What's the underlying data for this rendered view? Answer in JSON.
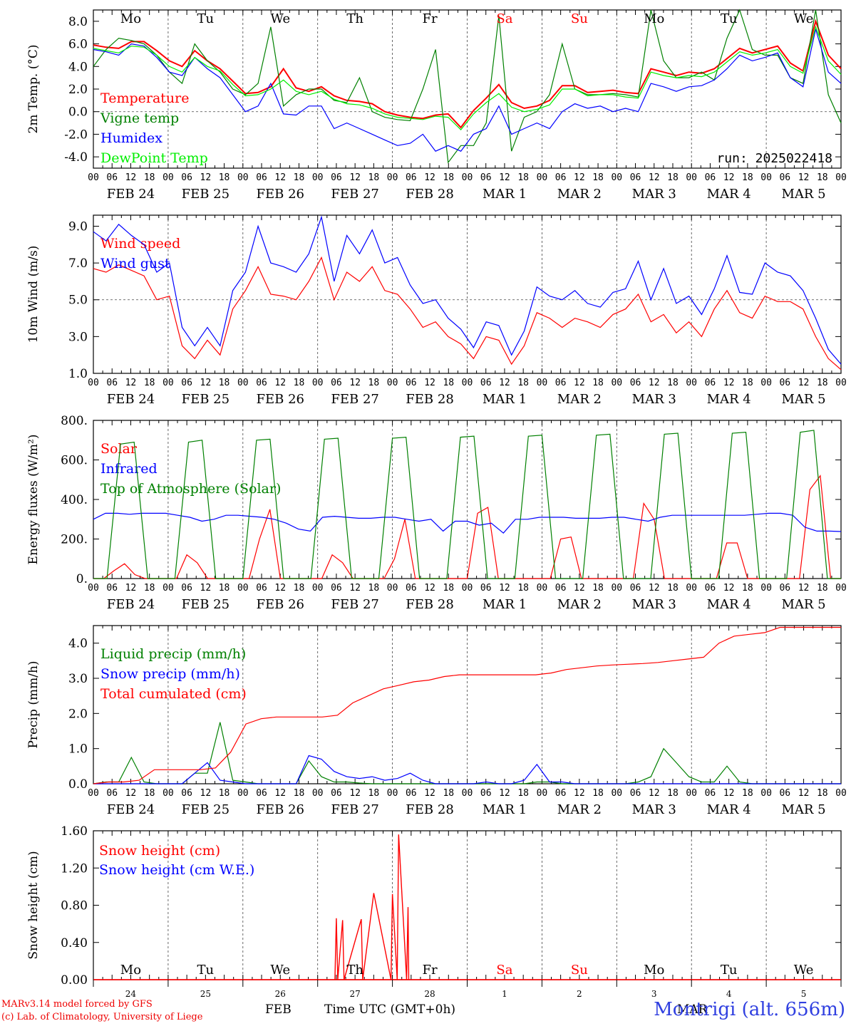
{
  "hours": [
    "00",
    "06",
    "12",
    "18"
  ],
  "date_labels": [
    "FEB 24",
    "FEB 25",
    "FEB 26",
    "FEB 27",
    "FEB 28",
    "MAR 1",
    "MAR 2",
    "MAR 3",
    "MAR 4",
    "MAR 5"
  ],
  "weekdays": [
    {
      "label": "Mo",
      "color": "#000000"
    },
    {
      "label": "Tu",
      "color": "#000000"
    },
    {
      "label": "We",
      "color": "#000000"
    },
    {
      "label": "Th",
      "color": "#000000"
    },
    {
      "label": "Fr",
      "color": "#000000"
    },
    {
      "label": "Sa",
      "color": "#ff0000"
    },
    {
      "label": "Su",
      "color": "#ff0000"
    },
    {
      "label": "Mo",
      "color": "#000000"
    },
    {
      "label": "Tu",
      "color": "#000000"
    },
    {
      "label": "We",
      "color": "#000000"
    }
  ],
  "day_numbers": [
    "24",
    "25",
    "26",
    "27",
    "28",
    "1",
    "2",
    "3",
    "4",
    "5"
  ],
  "footer": {
    "credit1": "MARv3.14 model forced by GFS",
    "credit2": "(c) Lab. of Climatology, University of Liege",
    "month_feb": "FEB",
    "month_mar": "MAR",
    "xtitle": "Time UTC (GMT+0h)",
    "station": "Montrigi (alt. 656m)"
  },
  "colors": {
    "red": "#ff0000",
    "green": "#008000",
    "blue": "#0000ff",
    "lime": "#00ee00"
  },
  "chart_data": [
    {
      "type": "line",
      "ylabel": "2m Temp. (°C)",
      "ylim": [
        -5.0,
        9.0
      ],
      "yticks": [
        "-4.0",
        "-2.0",
        "0.0",
        "2.0",
        "4.0",
        "6.0",
        "8.0"
      ],
      "ytick_values": [
        -4,
        -2,
        0,
        2,
        4,
        6,
        8
      ],
      "ref_line": 0.0,
      "annotation": "run: 2025022418",
      "x_step_hours": 6,
      "series": [
        {
          "name": "Temperature",
          "color": "#ff0000",
          "values": [
            5.9,
            5.7,
            5.6,
            6.2,
            6.2,
            5.4,
            4.5,
            4.0,
            5.4,
            4.5,
            3.8,
            2.7,
            1.6,
            1.7,
            2.2,
            3.8,
            2.1,
            1.8,
            2.2,
            1.4,
            1.0,
            0.9,
            0.7,
            0.0,
            -0.3,
            -0.5,
            -0.6,
            -0.3,
            -0.2,
            -1.4,
            0.1,
            1.2,
            2.4,
            0.8,
            0.3,
            0.5,
            1.0,
            2.3,
            2.3,
            1.7,
            1.8,
            1.9,
            1.7,
            1.6,
            3.8,
            3.5,
            3.2,
            3.5,
            3.4,
            3.8,
            4.7,
            5.6,
            5.2,
            5.5,
            5.8,
            4.3,
            3.6,
            8.0,
            5.0,
            3.8
          ]
        },
        {
          "name": "Vigne temp",
          "color": "#008000",
          "values": [
            4.0,
            5.5,
            6.5,
            6.3,
            6.0,
            5.0,
            3.5,
            2.5,
            6.0,
            4.5,
            3.5,
            2.0,
            1.5,
            2.5,
            7.5,
            0.5,
            1.5,
            2.0,
            2.0,
            1.0,
            0.8,
            3.0,
            0.0,
            -0.5,
            -0.7,
            -0.8,
            2.0,
            5.5,
            -4.5,
            -3.0,
            -3.0,
            -1.0,
            8.5,
            -3.5,
            -0.5,
            0.0,
            1.5,
            6.0,
            2.0,
            1.5,
            1.5,
            1.6,
            1.5,
            1.3,
            9.0,
            4.5,
            3.0,
            3.0,
            3.5,
            2.8,
            6.5,
            9.0,
            5.5,
            5.0,
            5.0,
            3.0,
            2.5,
            9.5,
            1.5,
            -1.0
          ]
        },
        {
          "name": "Humidex",
          "color": "#0000ff",
          "values": [
            5.5,
            5.3,
            5.0,
            6.0,
            5.8,
            4.8,
            3.5,
            3.2,
            4.8,
            3.8,
            3.0,
            1.5,
            0.0,
            0.5,
            2.5,
            -0.2,
            -0.3,
            0.5,
            0.5,
            -1.5,
            -1.0,
            -1.5,
            -2.0,
            -2.5,
            -3.0,
            -2.8,
            -2.0,
            -3.5,
            -3.0,
            -3.5,
            -2.0,
            -1.5,
            0.5,
            -2.0,
            -1.5,
            -1.0,
            -1.5,
            0.0,
            0.7,
            0.3,
            0.5,
            0.0,
            0.3,
            0.0,
            2.5,
            2.2,
            1.8,
            2.2,
            2.3,
            2.8,
            3.8,
            5.0,
            4.5,
            4.8,
            5.2,
            3.0,
            2.2,
            7.3,
            3.5,
            2.5
          ]
        },
        {
          "name": "DewPoint Temp",
          "color": "#00ee00",
          "values": [
            5.6,
            5.4,
            5.2,
            5.8,
            5.7,
            5.0,
            4.0,
            3.5,
            4.8,
            4.0,
            3.6,
            2.4,
            1.4,
            1.5,
            2.0,
            2.8,
            1.8,
            1.5,
            1.8,
            1.1,
            0.7,
            0.6,
            0.3,
            -0.2,
            -0.5,
            -0.6,
            -0.7,
            -0.4,
            -0.5,
            -1.6,
            -0.2,
            0.8,
            1.6,
            0.4,
            0.0,
            0.2,
            0.6,
            2.0,
            2.0,
            1.4,
            1.5,
            1.5,
            1.3,
            1.2,
            3.5,
            3.2,
            3.0,
            3.2,
            3.1,
            3.5,
            4.4,
            5.3,
            5.0,
            5.2,
            5.5,
            4.0,
            3.4,
            7.5,
            4.5,
            3.3
          ]
        }
      ]
    },
    {
      "type": "line",
      "ylabel": "10m Wind (m/s)",
      "ylim": [
        1.0,
        9.6
      ],
      "yticks": [
        "1.0",
        "3.0",
        "5.0",
        "7.0",
        "9.0"
      ],
      "ytick_values": [
        1,
        3,
        5,
        7,
        9
      ],
      "ref_line": 5.0,
      "x_step_hours": 6,
      "series": [
        {
          "name": "Wind speed",
          "color": "#ff0000",
          "values": [
            6.7,
            6.5,
            6.9,
            6.6,
            6.3,
            5.0,
            5.2,
            2.5,
            1.8,
            2.8,
            2.0,
            4.5,
            5.5,
            6.8,
            5.3,
            5.2,
            5.0,
            6.0,
            7.3,
            5.0,
            6.5,
            6.0,
            6.8,
            5.5,
            5.3,
            4.5,
            3.5,
            3.8,
            3.0,
            2.6,
            1.8,
            3.0,
            2.8,
            1.5,
            2.5,
            4.3,
            4.0,
            3.5,
            4.0,
            3.8,
            3.5,
            4.2,
            4.5,
            5.3,
            3.8,
            4.2,
            3.2,
            3.8,
            3.0,
            4.5,
            5.5,
            4.3,
            4.0,
            5.2,
            4.9,
            4.9,
            4.5,
            3.0,
            1.8,
            1.2
          ]
        },
        {
          "name": "Wind gust",
          "color": "#0000ff",
          "values": [
            8.7,
            8.2,
            9.1,
            8.5,
            8.0,
            6.5,
            7.0,
            3.5,
            2.5,
            3.5,
            2.5,
            5.5,
            6.5,
            9.0,
            7.0,
            6.8,
            6.5,
            7.5,
            9.5,
            6.0,
            8.5,
            7.5,
            8.8,
            7.0,
            7.3,
            5.8,
            4.8,
            5.0,
            4.0,
            3.4,
            2.4,
            3.8,
            3.6,
            2.0,
            3.3,
            5.7,
            5.2,
            5.0,
            5.5,
            4.8,
            4.6,
            5.4,
            5.6,
            7.1,
            5.0,
            6.7,
            4.8,
            5.2,
            4.2,
            5.6,
            7.4,
            5.4,
            5.3,
            7.0,
            6.5,
            6.3,
            5.5,
            4.0,
            2.3,
            1.5
          ]
        }
      ]
    },
    {
      "type": "line",
      "ylabel": "Energy fluxes (W/m²)",
      "ylim": [
        0,
        800
      ],
      "yticks": [
        "0.",
        "200.",
        "400.",
        "600.",
        "800."
      ],
      "ytick_values": [
        0,
        200,
        400,
        600,
        800
      ],
      "x_step_hours": 3,
      "series": [
        {
          "name": "Solar",
          "color": "#ff0000",
          "values": [
            0,
            0,
            40,
            75,
            20,
            0,
            0,
            0,
            0,
            120,
            80,
            0,
            0,
            0,
            0,
            0,
            200,
            350,
            0,
            0,
            0,
            0,
            0,
            120,
            80,
            0,
            0,
            0,
            0,
            100,
            300,
            0,
            0,
            0,
            0,
            0,
            0,
            330,
            360,
            0,
            0,
            0,
            0,
            0,
            0,
            200,
            210,
            0,
            0,
            0,
            0,
            0,
            0,
            380,
            300,
            0,
            0,
            0,
            0,
            0,
            0,
            180,
            180,
            0,
            0,
            0,
            0,
            0,
            0,
            450,
            520,
            0,
            0
          ]
        },
        {
          "name": "Infrared",
          "color": "#0000ff",
          "values": [
            300,
            330,
            330,
            325,
            330,
            330,
            330,
            320,
            310,
            290,
            300,
            320,
            320,
            315,
            310,
            300,
            280,
            250,
            240,
            310,
            315,
            310,
            305,
            305,
            310,
            310,
            300,
            290,
            300,
            240,
            290,
            290,
            270,
            280,
            230,
            300,
            300,
            310,
            310,
            310,
            305,
            305,
            305,
            310,
            310,
            300,
            290,
            310,
            320,
            320,
            320,
            320,
            320,
            320,
            320,
            325,
            330,
            330,
            320,
            260,
            240,
            240,
            238
          ]
        },
        {
          "name": "Top of Atmosphere (Solar)",
          "color": "#008000",
          "values": [
            0,
            0,
            680,
            690,
            0,
            0,
            0,
            690,
            700,
            0,
            0,
            0,
            700,
            705,
            0,
            0,
            0,
            705,
            710,
            0,
            0,
            0,
            710,
            715,
            0,
            0,
            0,
            715,
            720,
            0,
            0,
            0,
            720,
            725,
            0,
            0,
            0,
            725,
            730,
            0,
            0,
            0,
            730,
            735,
            0,
            0,
            0,
            735,
            740,
            0,
            0,
            0,
            740,
            750,
            0,
            0
          ]
        }
      ]
    },
    {
      "type": "line",
      "ylabel": "Precip (mm/h)",
      "ylim": [
        0,
        4.5
      ],
      "yticks": [
        "0.0",
        "1.0",
        "2.0",
        "3.0",
        "4.0"
      ],
      "ytick_values": [
        0,
        1,
        2,
        3,
        4
      ],
      "x_step_hours": 6,
      "series": [
        {
          "name": "Liquid precip (mm/h)",
          "color": "#008000",
          "values": [
            0.0,
            0.05,
            0.05,
            0.75,
            0.05,
            0.0,
            0.0,
            0.0,
            0.3,
            0.3,
            1.75,
            0.1,
            0.05,
            0.0,
            0.0,
            0.0,
            0.0,
            0.65,
            0.2,
            0.05,
            0.05,
            0.02,
            0.0,
            0.0,
            0.0,
            0.0,
            0.0,
            0.0,
            0.0,
            0.0,
            0.0,
            0.0,
            0.0,
            0.0,
            0.0,
            0.05,
            0.05,
            0.0,
            0.0,
            0.0,
            0.0,
            0.0,
            0.0,
            0.05,
            0.2,
            1.0,
            0.6,
            0.2,
            0.05,
            0.05,
            0.5,
            0.05,
            0.0,
            0.0,
            0.0,
            0.0,
            0.0,
            0.0,
            0.0,
            0.0
          ]
        },
        {
          "name": "Snow precip (mm/h)",
          "color": "#0000ff",
          "values": [
            0.0,
            0.0,
            0.0,
            0.0,
            0.0,
            0.0,
            0.0,
            0.0,
            0.3,
            0.6,
            0.1,
            0.05,
            0.0,
            0.0,
            0.0,
            0.0,
            0.0,
            0.8,
            0.7,
            0.35,
            0.2,
            0.15,
            0.2,
            0.1,
            0.15,
            0.3,
            0.1,
            0.0,
            0.0,
            0.0,
            0.0,
            0.05,
            0.0,
            0.0,
            0.1,
            0.55,
            0.05,
            0.05,
            0.0,
            0.0,
            0.0,
            0.0,
            0.0,
            0.0,
            0.0,
            0.0,
            0.0,
            0.0,
            0.0,
            0.0,
            0.0,
            0.0,
            0.0,
            0.0,
            0.0,
            0.0,
            0.0,
            0.0,
            0.0,
            0.0
          ]
        },
        {
          "name": "Total cumulated (cm)",
          "color": "#ff0000",
          "values": [
            0.0,
            0.05,
            0.05,
            0.1,
            0.4,
            0.4,
            0.4,
            0.4,
            0.45,
            0.9,
            1.7,
            1.85,
            1.9,
            1.9,
            1.9,
            1.9,
            1.95,
            2.3,
            2.5,
            2.7,
            2.8,
            2.9,
            2.95,
            3.05,
            3.1,
            3.1,
            3.1,
            3.1,
            3.1,
            3.1,
            3.15,
            3.25,
            3.3,
            3.35,
            3.38,
            3.4,
            3.42,
            3.45,
            3.5,
            3.55,
            3.6,
            4.0,
            4.2,
            4.25,
            4.3,
            4.45,
            4.45,
            4.45,
            4.45,
            4.45
          ]
        }
      ]
    },
    {
      "type": "line",
      "ylabel": "Snow height (cm)",
      "ylim": [
        0,
        1.6
      ],
      "yticks": [
        "0.00",
        "0.40",
        "0.80",
        "1.20",
        "1.60"
      ],
      "ytick_values": [
        0,
        0.4,
        0.8,
        1.2,
        1.6
      ],
      "x_step_hours": 6,
      "series": [
        {
          "name": "Snow height (cm)",
          "color": "#ff0000",
          "values": [
            0,
            0,
            0,
            0,
            0,
            0,
            0,
            0,
            0,
            0,
            0,
            0,
            0,
            0,
            0,
            0,
            0,
            0,
            0,
            0,
            0,
            0,
            0,
            0,
            0,
            0,
            0,
            0,
            0,
            0,
            0,
            0,
            0,
            0,
            0,
            0,
            0,
            0,
            0,
            0,
            0,
            0,
            0,
            0,
            0,
            0,
            0,
            0,
            0,
            0,
            0,
            0,
            0,
            0,
            0,
            0,
            0,
            0,
            0,
            0
          ]
        },
        {
          "name": "Snow height (cm W.E.)",
          "color": "#0000ff",
          "values": []
        }
      ],
      "spikes": [
        {
          "x_hours": 78,
          "value": 0.66
        },
        {
          "x_hours": 80,
          "value": 0.64
        },
        {
          "x_hours": 86,
          "value": 0.65
        },
        {
          "x_hours": 90,
          "value": 0.93
        },
        {
          "x_hours": 96,
          "value": 0.92
        },
        {
          "x_hours": 98,
          "value": 1.56
        },
        {
          "x_hours": 101,
          "value": 0.78
        }
      ]
    }
  ]
}
